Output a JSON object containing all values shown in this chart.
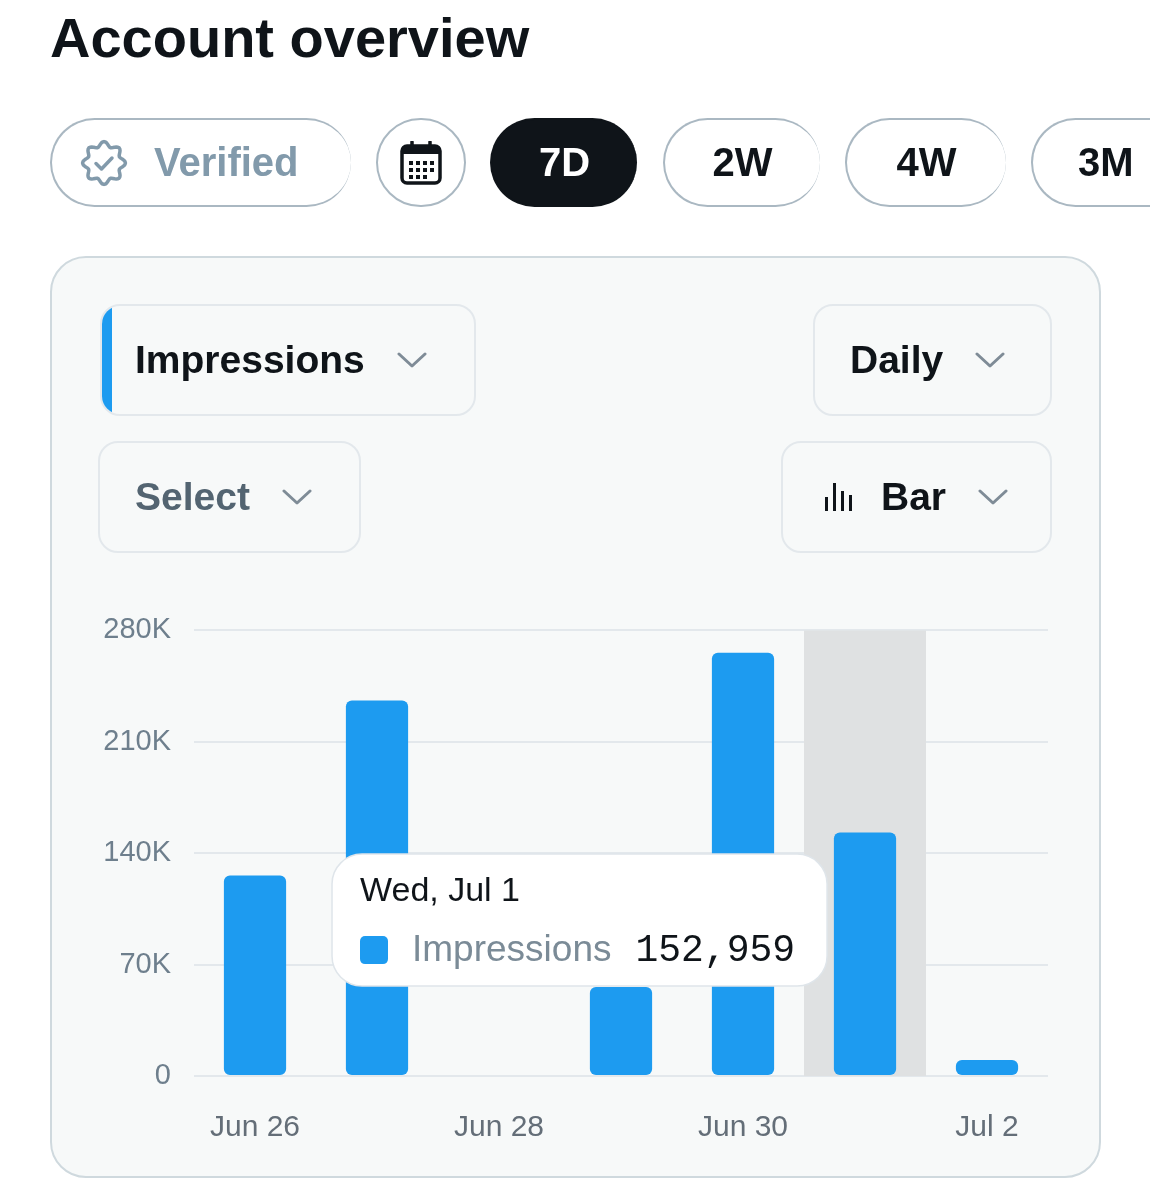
{
  "chart_data": {
    "type": "bar",
    "title": "Account overview",
    "x": [
      "--06-26",
      "--06-27",
      "--06-28",
      "--06-29",
      "--06-30",
      "--07-01",
      "--07-02"
    ],
    "series": [
      {
        "name": "Impressions",
        "color": "#1d9bf0",
        "values": [
          126000,
          236000,
          null,
          56000,
          266000,
          152959,
          10000
        ]
      }
    ],
    "xlim": [
      "--06-25T12:00",
      "--07-02T12:00"
    ],
    "xticks": [
      {
        "value": "--06-26",
        "label": "Jun 26"
      },
      {
        "value": "--06-28",
        "label": "Jun 28"
      },
      {
        "value": "--06-30",
        "label": "Jun 30"
      },
      {
        "value": "--07-02",
        "label": "Jul 2"
      }
    ],
    "ylim": [
      0,
      280000
    ],
    "yticks": [
      0,
      {
        "value": 70000,
        "label": "70K"
      },
      {
        "value": 140000,
        "label": "140K"
      },
      {
        "value": 210000,
        "label": "210K"
      },
      {
        "value": 280000,
        "label": "280K"
      }
    ],
    "grid": "y",
    "legend": "bottom left",
    "bands": [
      {
        "axis": "x",
        "from": "--06-30T12:00",
        "to": "--07-01T12:00",
        "color": "#dfe1e2"
      }
    ],
    "annotations": [
      "Verified",
      "7D",
      "2W",
      "4W",
      "3M",
      "Impressions",
      "Daily",
      "Select",
      "Bar",
      "Wed, Jul 1",
      "152,959"
    ]
  }
}
